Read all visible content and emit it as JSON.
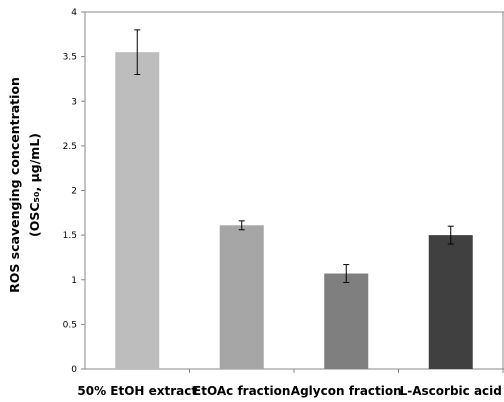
{
  "chart_data": {
    "type": "bar",
    "title": "",
    "xlabel": "",
    "ylabel": {
      "line1": "ROS   scavenging concentration",
      "line2": "(OSC₅₀, μg/mL)"
    },
    "ylim": [
      0,
      4
    ],
    "yticks": [
      "0",
      "0.5",
      "1",
      "1.5",
      "2",
      "2.5",
      "3",
      "3.5",
      "4"
    ],
    "categories": [
      "50% EtOH extract",
      "EtOAc fraction",
      "Aglycon fraction",
      "L-Ascorbic acid"
    ],
    "values": [
      3.55,
      1.61,
      1.07,
      1.5
    ],
    "errors": [
      0.25,
      0.05,
      0.1,
      0.1
    ],
    "colors": [
      "#bdbdbd",
      "#a6a6a6",
      "#7f7f7f",
      "#404040"
    ],
    "grid": false,
    "legend": "none"
  }
}
